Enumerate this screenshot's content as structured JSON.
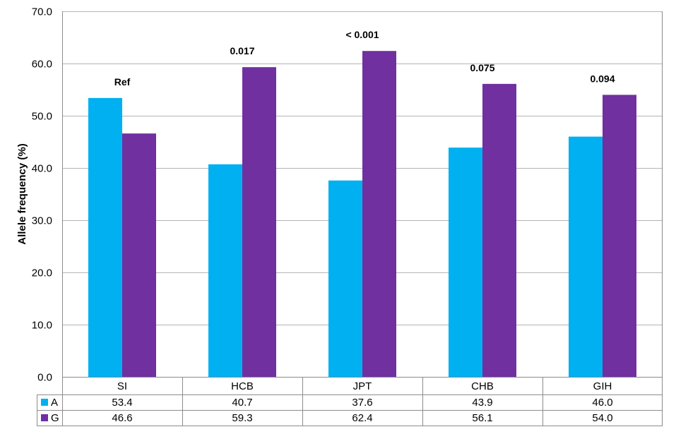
{
  "chart_data": {
    "type": "bar",
    "ylabel": "Allele frequency (%)",
    "ylim": [
      0,
      70
    ],
    "yticks": [
      "0.0",
      "10.0",
      "20.0",
      "30.0",
      "40.0",
      "50.0",
      "60.0",
      "70.0"
    ],
    "grid": true,
    "categories": [
      "SI",
      "HCB",
      "JPT",
      "CHB",
      "GIH"
    ],
    "annotations": [
      "Ref",
      "0.017",
      "< 0.001",
      "0.075",
      "0.094"
    ],
    "series": [
      {
        "name": "A",
        "color": "#00b0f0",
        "values": [
          53.4,
          40.7,
          37.6,
          43.9,
          46.0
        ],
        "labels": [
          "53.4",
          "40.7",
          "37.6",
          "43.9",
          "46.0"
        ]
      },
      {
        "name": "G",
        "color": "#7030a0",
        "values": [
          46.6,
          59.3,
          62.4,
          56.1,
          54.0
        ],
        "labels": [
          "46.6",
          "59.3",
          "62.4",
          "56.1",
          "54.0"
        ]
      }
    ],
    "legend": "data-table-left"
  }
}
